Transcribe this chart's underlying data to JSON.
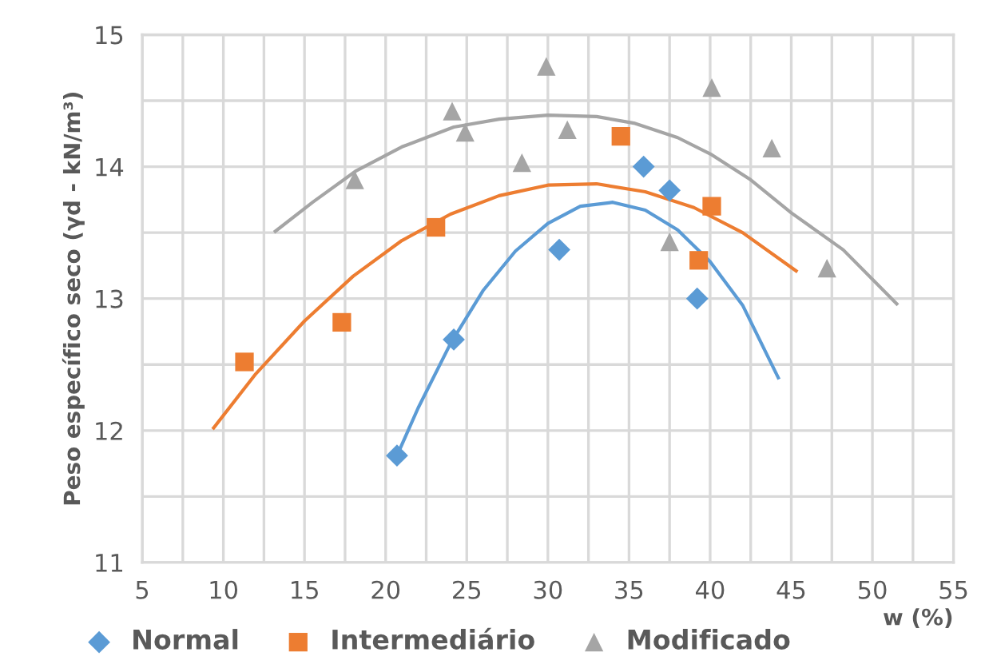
{
  "chart_data": {
    "type": "scatter",
    "xlabel": "w (%)",
    "ylabel": "Peso específico seco (γd - kN/m³)",
    "xlim": [
      5,
      55
    ],
    "ylim": [
      11,
      15
    ],
    "xticks": [
      5,
      {
        "value": 7.5,
        "label": null
      },
      10,
      {
        "value": 12.5,
        "label": null
      },
      15,
      {
        "value": 17.5,
        "label": null
      },
      20,
      {
        "value": 22.5,
        "label": null
      },
      25,
      {
        "value": 27.5,
        "label": null
      },
      30,
      {
        "value": 32.5,
        "label": null
      },
      35,
      {
        "value": 37.5,
        "label": null
      },
      40,
      {
        "value": 42.5,
        "label": null
      },
      45,
      {
        "value": 47.5,
        "label": null
      },
      50,
      {
        "value": 52.5,
        "label": null
      },
      55
    ],
    "yticks": [
      11,
      {
        "value": 11.5,
        "label": null
      },
      12,
      {
        "value": 12.5,
        "label": null
      },
      13,
      {
        "value": 13.5,
        "label": null
      },
      14,
      {
        "value": 14.5,
        "label": null
      },
      15
    ],
    "grid": true,
    "legend": "bottom",
    "series": [
      {
        "name": "Normal",
        "marker": "diamond",
        "color": "#5b9bd5",
        "x": [
          20.7,
          24.2,
          30.7,
          35.9,
          37.5,
          39.2
        ],
        "values": [
          11.81,
          12.69,
          13.37,
          14.0,
          13.82,
          13.0
        ]
      },
      {
        "name": "Intermediário",
        "marker": "square",
        "color": "#ed7d31",
        "x": [
          11.3,
          17.3,
          23.1,
          34.5,
          40.1,
          39.3
        ],
        "values": [
          12.52,
          12.82,
          13.54,
          14.23,
          13.7,
          13.29
        ]
      },
      {
        "name": "Modificado",
        "marker": "triangle",
        "color": "#a5a5a5",
        "x": [
          18.1,
          24.1,
          24.9,
          28.4,
          29.9,
          31.2,
          40.1,
          43.8,
          37.5,
          47.2
        ],
        "values": [
          13.9,
          14.42,
          14.26,
          14.03,
          14.76,
          14.28,
          14.6,
          14.14,
          13.43,
          13.23
        ]
      },
      {
        "type": "line",
        "marker": "none",
        "color": "#5b9bd5",
        "x": [
          20.7,
          22,
          24,
          26,
          28,
          30,
          32,
          34,
          36,
          38,
          40,
          42,
          44.2
        ],
        "values": [
          11.81,
          12.17,
          12.66,
          13.06,
          13.36,
          13.57,
          13.7,
          13.73,
          13.67,
          13.52,
          13.28,
          12.95,
          12.4
        ]
      },
      {
        "type": "line",
        "marker": "none",
        "color": "#ed7d31",
        "x": [
          9.4,
          12,
          15,
          18,
          21,
          24,
          27,
          30,
          33,
          36,
          39,
          42,
          45.3
        ],
        "values": [
          12.02,
          12.43,
          12.83,
          13.17,
          13.44,
          13.64,
          13.78,
          13.86,
          13.87,
          13.81,
          13.69,
          13.5,
          13.21
        ]
      },
      {
        "type": "line",
        "marker": "none",
        "color": "#a5a5a5",
        "x": [
          13.2,
          15.5,
          18.2,
          21,
          24.2,
          27,
          30,
          33,
          35.3,
          38,
          40.1,
          42.5,
          45,
          48.2,
          51.5
        ],
        "values": [
          13.51,
          13.73,
          13.97,
          14.15,
          14.3,
          14.36,
          14.39,
          14.38,
          14.33,
          14.22,
          14.09,
          13.9,
          13.65,
          13.37,
          12.96
        ]
      }
    ]
  }
}
